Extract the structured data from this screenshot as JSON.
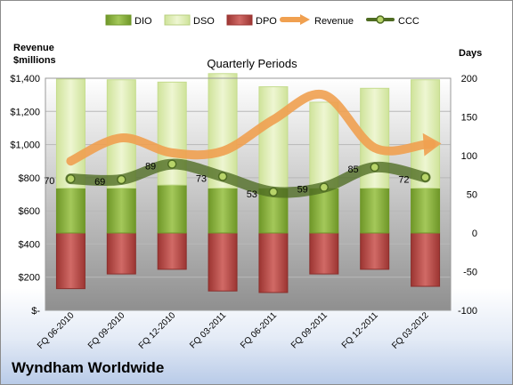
{
  "company": "Wyndham Worldwide",
  "chart_data": {
    "type": "bar",
    "title": "Quarterly Periods",
    "categories": [
      "FQ 06-2010",
      "FQ 09-2010",
      "FQ 12-2010",
      "FQ 03-2011",
      "FQ 06-2011",
      "FQ 09-2011",
      "FQ 12-2011",
      "FQ 03-2012"
    ],
    "left_axis": {
      "title_line1": "Revenue",
      "title_line2": "$millions",
      "ylim": [
        0,
        1400
      ],
      "ticks": [
        0,
        200,
        400,
        600,
        800,
        1000,
        1200,
        1400
      ],
      "tick_labels": [
        "$-",
        "$200",
        "$400",
        "$600",
        "$800",
        "$1,000",
        "$1,200",
        "$1,400"
      ]
    },
    "right_axis": {
      "title": "Days",
      "ylim": [
        -100,
        200
      ],
      "ticks": [
        -100,
        -50,
        0,
        50,
        100,
        150,
        200
      ],
      "tick_labels": [
        "-100",
        "-50",
        "0",
        "50",
        "100",
        "150",
        "200"
      ]
    },
    "series": [
      {
        "name": "DIO",
        "axis": "right",
        "color": "#8fb63b",
        "values": [
          58,
          58,
          62,
          58,
          58,
          58,
          58,
          58
        ]
      },
      {
        "name": "DSO",
        "axis": "right",
        "color": "#dfeeb3",
        "values": [
          141,
          140,
          133,
          148,
          131,
          111,
          129,
          140
        ]
      },
      {
        "name": "DPO",
        "axis": "right",
        "color": "#c0504d",
        "values": [
          -72,
          -53,
          -47,
          -75,
          -77,
          -53,
          -47,
          -69
        ]
      },
      {
        "name": "Revenue",
        "axis": "left",
        "color": "#f0a050",
        "values": [
          900,
          1040,
          950,
          960,
          1150,
          1300,
          980,
          1000
        ]
      },
      {
        "name": "CCC",
        "axis": "right",
        "color": "#4e6b22",
        "values": [
          70,
          69,
          89,
          73,
          53,
          59,
          85,
          72
        ],
        "labels": [
          "70",
          "69",
          "89",
          "73",
          "53",
          "59",
          "85",
          "72"
        ]
      }
    ],
    "grid": true,
    "legend": "top"
  }
}
